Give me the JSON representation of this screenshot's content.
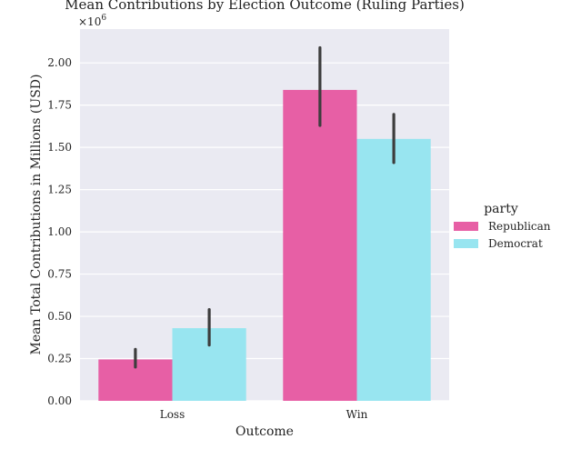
{
  "chart_data": {
    "type": "bar",
    "title": "Mean Contributions by Election Outcome (Ruling Parties)",
    "xlabel": "Outcome",
    "ylabel": "Mean Total Contributions in Millions (USD)",
    "y_offset_label": "×10",
    "y_offset_exponent": "6",
    "categories": [
      "Loss",
      "Win"
    ],
    "ylim": [
      0,
      2200000
    ],
    "yticks": [
      0,
      250000,
      500000,
      750000,
      1000000,
      1250000,
      1500000,
      1750000,
      2000000
    ],
    "ytick_labels": [
      "0.00",
      "0.25",
      "0.50",
      "0.75",
      "1.00",
      "1.25",
      "1.50",
      "1.75",
      "2.00"
    ],
    "grid": true,
    "legend": {
      "title": "party",
      "position": "right"
    },
    "series": [
      {
        "name": "Republican",
        "color": "#e75fa5",
        "values": [
          245000,
          1840000
        ],
        "ci_low": [
          200000,
          1630000
        ],
        "ci_high": [
          305000,
          2090000
        ]
      },
      {
        "name": "Democrat",
        "color": "#98e5f0",
        "values": [
          430000,
          1550000
        ],
        "ci_low": [
          330000,
          1410000
        ],
        "ci_high": [
          540000,
          1695000
        ]
      }
    ]
  }
}
